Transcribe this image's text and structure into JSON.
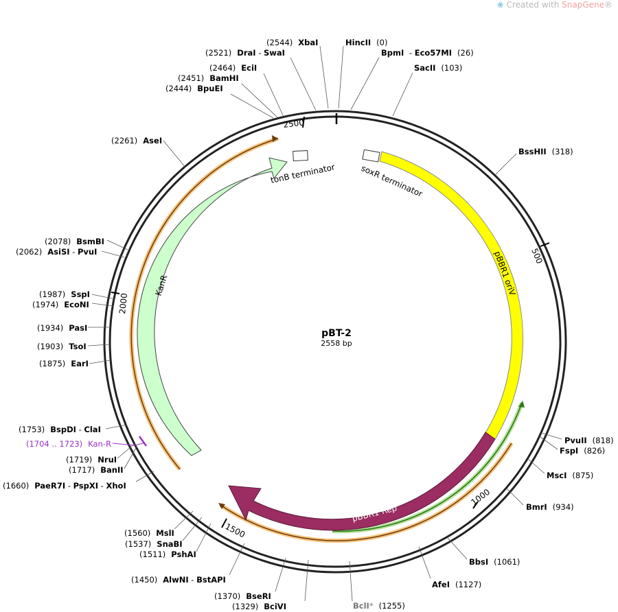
{
  "watermark": {
    "prefix": "Created with ",
    "brand": "SnapGene",
    "suffix": "®"
  },
  "plasmid": {
    "name": "pBT-2",
    "size_label": "2558 bp",
    "length": 2558
  },
  "ticks": [
    {
      "pos": 500,
      "label": "500"
    },
    {
      "pos": 1000,
      "label": "1000"
    },
    {
      "pos": 1500,
      "label": "1500"
    },
    {
      "pos": 2000,
      "label": "2000"
    },
    {
      "pos": 2500,
      "label": "2500"
    }
  ],
  "features": [
    {
      "name": "pBBR1 oriV",
      "label": "pBBR1 oriV",
      "color": "#ffff00"
    },
    {
      "name": "pBBR1 Rep",
      "label": "pBBR1 Rep",
      "color": "#9b2d62"
    },
    {
      "name": "KanR",
      "label": "KanR",
      "color": "#ccffcc"
    },
    {
      "name": "tonB terminator",
      "label": "tonB terminator"
    },
    {
      "name": "soxR terminator",
      "label": "soxR terminator"
    }
  ],
  "sites": [
    {
      "name": "XbaI",
      "pos": "2544"
    },
    {
      "name": "HincII",
      "pos": "0"
    },
    {
      "name": "DraI",
      "name2": "SwaI",
      "pos": "2521"
    },
    {
      "name": "BpmI",
      "name2": "Eco57MI",
      "pos": "26"
    },
    {
      "name": "EciI",
      "pos": "2464"
    },
    {
      "name": "SacII",
      "pos": "103"
    },
    {
      "name": "BamHI",
      "pos": "2451"
    },
    {
      "name": "BpuEI",
      "pos": "2444"
    },
    {
      "name": "AseI",
      "pos": "2261"
    },
    {
      "name": "BssHII",
      "pos": "318"
    },
    {
      "name": "BsmBI",
      "pos": "2078"
    },
    {
      "name": "AsiSI",
      "name2": "PvuI",
      "pos": "2062"
    },
    {
      "name": "SspI",
      "pos": "1987"
    },
    {
      "name": "EcoNI",
      "pos": "1974"
    },
    {
      "name": "PasI",
      "pos": "1934"
    },
    {
      "name": "TsoI",
      "pos": "1903"
    },
    {
      "name": "EarI",
      "pos": "1875"
    },
    {
      "name": "PvuII",
      "pos": "818"
    },
    {
      "name": "FspI",
      "pos": "826"
    },
    {
      "name": "BspDI",
      "name2": "ClaI",
      "pos": "1753"
    },
    {
      "name": "MscI",
      "pos": "875"
    },
    {
      "name": "NruI",
      "pos": "1719"
    },
    {
      "name": "BanII",
      "pos": "1717"
    },
    {
      "name": "BmrI",
      "pos": "934"
    },
    {
      "name": "PaeR7I",
      "name2": "PspXI",
      "name3": "XhoI",
      "pos": "1660"
    },
    {
      "name": "MslI",
      "pos": "1560"
    },
    {
      "name": "SnaBI",
      "pos": "1537"
    },
    {
      "name": "PshAI",
      "pos": "1511"
    },
    {
      "name": "BbsI",
      "pos": "1061"
    },
    {
      "name": "AlwNI",
      "name2": "BstAPI",
      "pos": "1450"
    },
    {
      "name": "AfeI",
      "pos": "1127"
    },
    {
      "name": "BseRI",
      "pos": "1370"
    },
    {
      "name": "BciVI",
      "pos": "1329"
    },
    {
      "name": "BclI",
      "pos": "1255",
      "note": "*"
    }
  ],
  "primer": {
    "name": "Kan-R",
    "range": "(1704 .. 1723)"
  }
}
